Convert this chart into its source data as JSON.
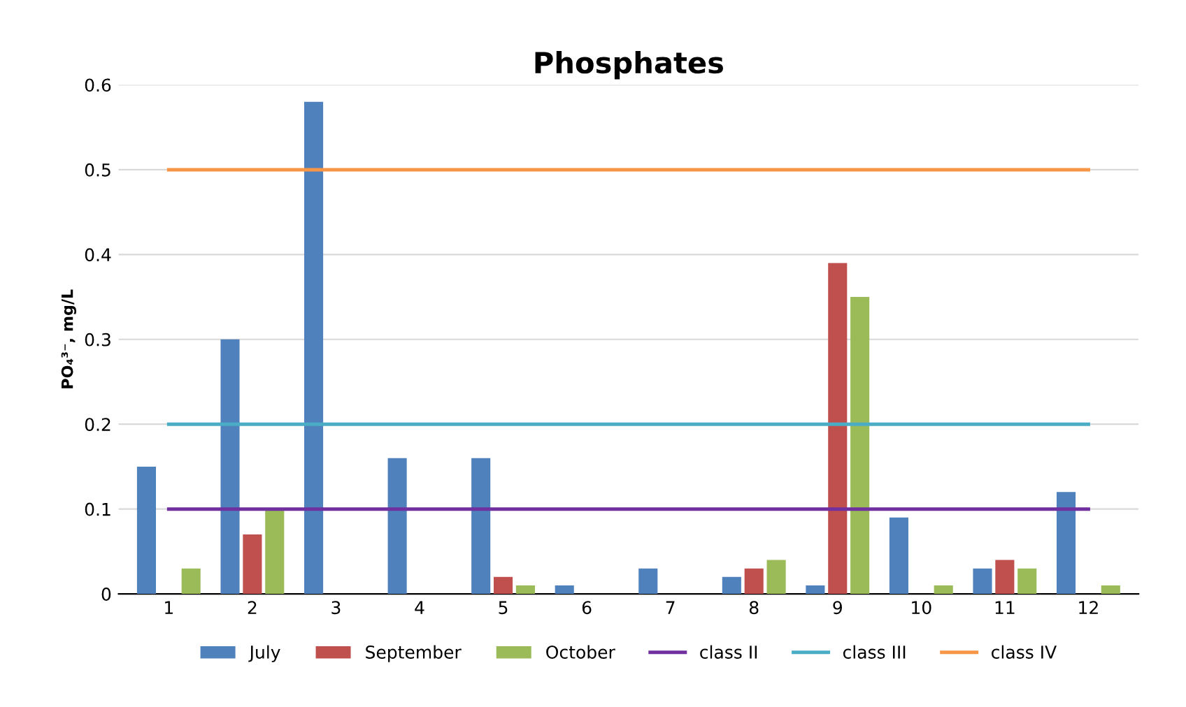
{
  "chart_data": {
    "type": "bar",
    "title": "Phosphates",
    "ylabel": "PO₄³⁻, mg/L",
    "categories": [
      "1",
      "2",
      "3",
      "4",
      "5",
      "6",
      "7",
      "8",
      "9",
      "10",
      "11",
      "12"
    ],
    "series": [
      {
        "name": "July",
        "color": "#4f81bd",
        "values": [
          0.15,
          0.3,
          0.58,
          0.16,
          0.16,
          0.01,
          0.03,
          0.02,
          0.01,
          0.09,
          0.03,
          0.12
        ]
      },
      {
        "name": "September",
        "color": "#c0504d",
        "values": [
          0,
          0.07,
          0,
          0,
          0.02,
          0,
          0,
          0.03,
          0.39,
          0,
          0.04,
          0
        ]
      },
      {
        "name": "October",
        "color": "#9bbb59",
        "values": [
          0.03,
          0.1,
          0,
          0,
          0.01,
          0,
          0,
          0.04,
          0.35,
          0.01,
          0.03,
          0.01
        ]
      },
      {
        "name": "class II",
        "type": "line",
        "color": "#7030a0",
        "values": [
          0.1,
          0.1,
          0.1,
          0.1,
          0.1,
          0.1,
          0.1,
          0.1,
          0.1,
          0.1,
          0.1,
          0.1
        ]
      },
      {
        "name": "class III",
        "type": "line",
        "color": "#4bacc6",
        "values": [
          0.2,
          0.2,
          0.2,
          0.2,
          0.2,
          0.2,
          0.2,
          0.2,
          0.2,
          0.2,
          0.2,
          0.2
        ]
      },
      {
        "name": "class IV",
        "type": "line",
        "color": "#f79646",
        "values": [
          0.5,
          0.5,
          0.5,
          0.5,
          0.5,
          0.5,
          0.5,
          0.5,
          0.5,
          0.5,
          0.5,
          0.5
        ]
      }
    ],
    "ylim": [
      0,
      0.6
    ],
    "yticks": [
      0,
      0.1,
      0.2,
      0.3,
      0.4,
      0.5,
      0.6
    ],
    "grid": "y",
    "legend": "bottom"
  }
}
